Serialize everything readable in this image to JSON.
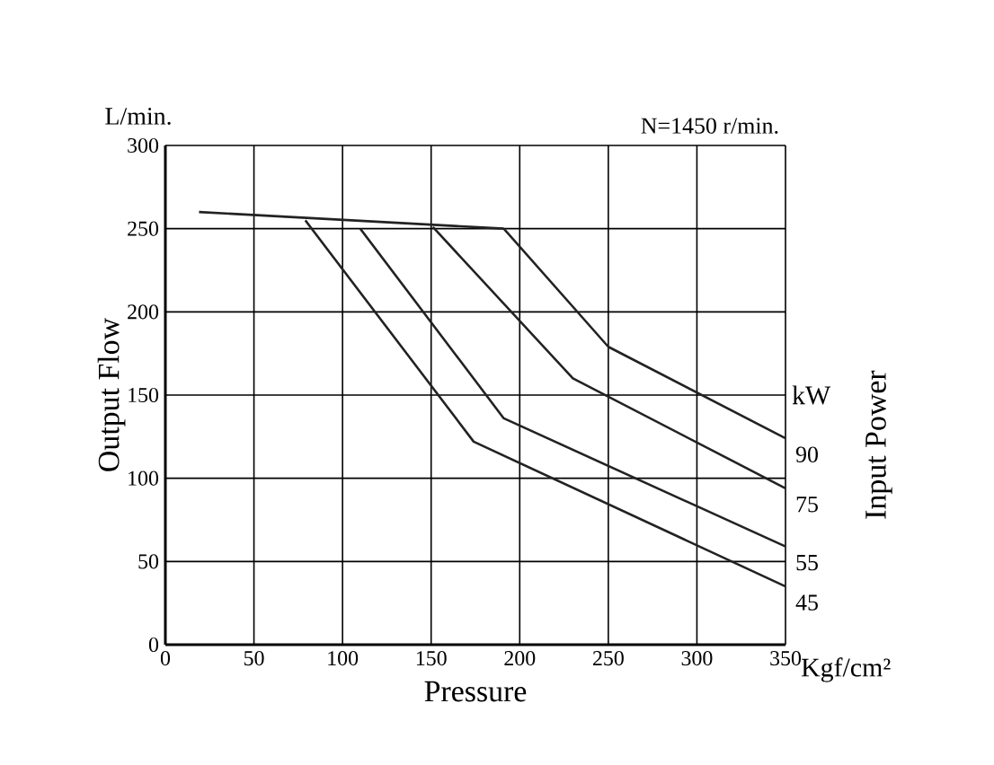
{
  "chart_data": {
    "type": "line",
    "xlabel": "Pressure",
    "ylabel": "Output Flow",
    "y2label": "Input Power",
    "legend_title": "kW",
    "annotations": [
      "L/min.",
      "Kgf/cm²",
      "N=1450 r/min."
    ],
    "xlim": [
      0,
      350
    ],
    "ylim": [
      0,
      300
    ],
    "xticks": [
      0,
      50,
      100,
      150,
      200,
      250,
      300,
      350
    ],
    "yticks": [
      0,
      50,
      100,
      150,
      200,
      250,
      300
    ],
    "grid": true,
    "legend": "right",
    "marker": "none",
    "line_style": "solid",
    "series": [
      {
        "color": "#222222",
        "x": [
          19,
          191
        ],
        "values": [
          260,
          250
        ]
      },
      {
        "name": "90",
        "color": "#222222",
        "x": [
          191,
          250,
          350
        ],
        "values": [
          250,
          179,
          124
        ]
      },
      {
        "name": "75",
        "color": "#222222",
        "x": [
          151,
          230,
          350
        ],
        "values": [
          251,
          160,
          94
        ]
      },
      {
        "name": "55",
        "color": "#222222",
        "x": [
          110,
          191,
          350
        ],
        "values": [
          250,
          136,
          59
        ]
      },
      {
        "name": "45",
        "color": "#222222",
        "x": [
          79,
          174,
          350
        ],
        "values": [
          255,
          122,
          35
        ]
      }
    ]
  }
}
